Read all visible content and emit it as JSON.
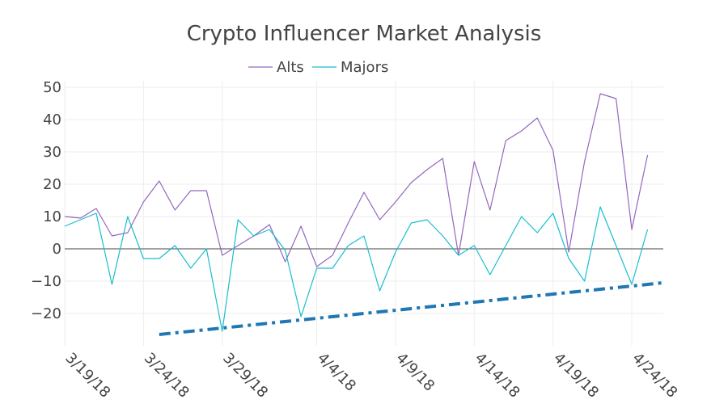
{
  "chart_data": {
    "type": "line",
    "title": "Crypto Influencer Market Analysis",
    "xlabel": "",
    "ylabel": "",
    "ylim": [
      -30,
      52
    ],
    "y_ticks": [
      50,
      40,
      30,
      20,
      10,
      0,
      -10,
      -20
    ],
    "y_tick_labels": [
      "50",
      "40",
      "30",
      "20",
      "10",
      "0",
      "−10",
      "−20"
    ],
    "x_ticks": [
      "2018-03-19",
      "2018-03-24",
      "2018-03-29",
      "2018-04-04",
      "2018-04-09",
      "2018-04-14",
      "2018-04-19",
      "2018-04-24"
    ],
    "x_tick_labels": [
      "3/19/18",
      "3/24/18",
      "3/29/18",
      "4/4/18",
      "4/9/18",
      "4/14/18",
      "4/19/18",
      "4/24/18"
    ],
    "xlim": [
      "2018-03-19",
      "2018-04-26"
    ],
    "grid": true,
    "legend": {
      "placement": "top-center",
      "orientation": "horizontal"
    },
    "x": [
      "2018-03-19",
      "2018-03-20",
      "2018-03-21",
      "2018-03-22",
      "2018-03-23",
      "2018-03-24",
      "2018-03-25",
      "2018-03-26",
      "2018-03-27",
      "2018-03-28",
      "2018-03-29",
      "2018-03-30",
      "2018-03-31",
      "2018-04-01",
      "2018-04-02",
      "2018-04-03",
      "2018-04-04",
      "2018-04-05",
      "2018-04-06",
      "2018-04-07",
      "2018-04-08",
      "2018-04-09",
      "2018-04-10",
      "2018-04-11",
      "2018-04-12",
      "2018-04-13",
      "2018-04-14",
      "2018-04-15",
      "2018-04-16",
      "2018-04-17",
      "2018-04-18",
      "2018-04-19",
      "2018-04-20",
      "2018-04-21",
      "2018-04-22",
      "2018-04-23",
      "2018-04-24",
      "2018-04-25"
    ],
    "series": [
      {
        "name": "Alts",
        "color": "#9467bd",
        "values": [
          10,
          9.5,
          12.5,
          4,
          5,
          14.5,
          21,
          12,
          18,
          18,
          -2,
          1,
          4,
          7.5,
          -4,
          7,
          -5.5,
          -2,
          8,
          17.5,
          9,
          14.5,
          20.5,
          24.5,
          28,
          -2,
          27,
          12,
          33.5,
          36.5,
          40.5,
          30.5,
          -1,
          27,
          48,
          46.5,
          6,
          29
        ]
      },
      {
        "name": "Majors",
        "color": "#17becf",
        "values": [
          7,
          9,
          11,
          -11,
          10,
          -3,
          -3,
          1,
          -6,
          0,
          -25.5,
          9,
          4,
          6,
          -0.5,
          -21,
          -6,
          -6,
          1,
          4,
          -13,
          -1,
          8,
          9,
          4,
          -2,
          1,
          -8,
          1,
          10,
          5,
          11,
          -3,
          -10,
          13,
          1,
          -11,
          6
        ]
      }
    ],
    "trendline": {
      "color": "#1f77b4",
      "x": [
        "2018-03-25",
        "2018-04-26"
      ],
      "y": [
        -26.5,
        -10.5
      ]
    }
  }
}
